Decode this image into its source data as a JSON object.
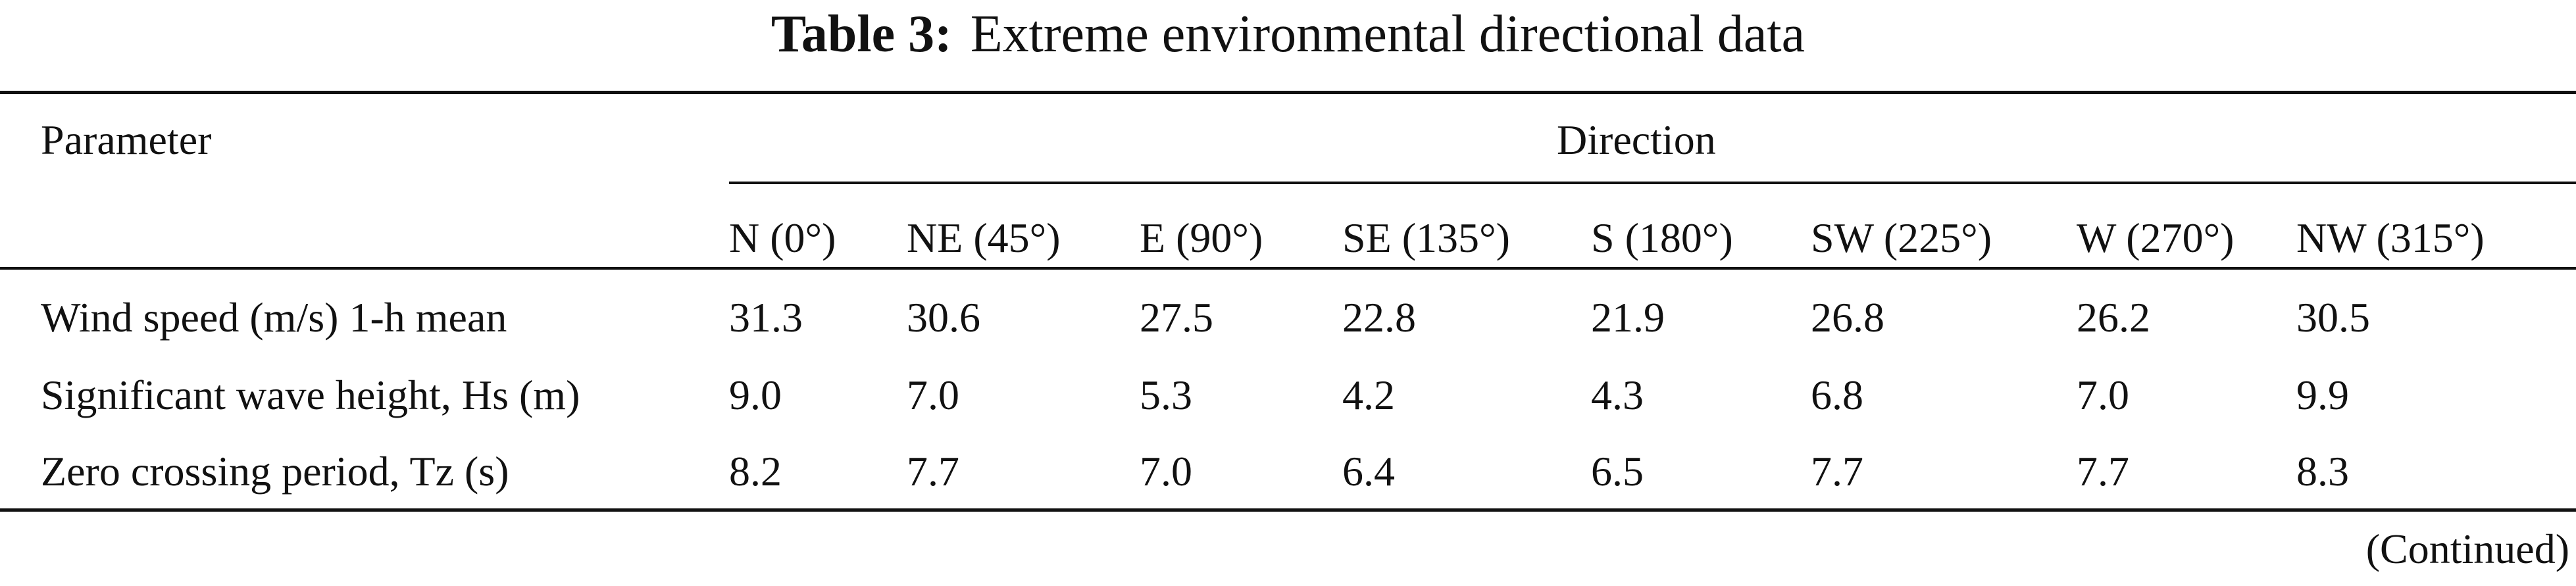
{
  "caption": {
    "label": "Table 3:",
    "text": "Extreme environmental directional data"
  },
  "table": {
    "parameter_header": "Parameter",
    "direction_header": "Direction",
    "directions": [
      "N (0°)",
      "NE (45°)",
      "E (90°)",
      "SE (135°)",
      "S (180°)",
      "SW (225°)",
      "W (270°)",
      "NW (315°)"
    ],
    "rows": [
      {
        "parameter": "Wind speed (m/s) 1-h mean",
        "values": [
          "31.3",
          "30.6",
          "27.5",
          "22.8",
          "21.9",
          "26.8",
          "26.2",
          "30.5"
        ]
      },
      {
        "parameter": "Significant wave height, Hs (m)",
        "values": [
          "9.0",
          "7.0",
          "5.3",
          "4.2",
          "4.3",
          "6.8",
          "7.0",
          "9.9"
        ]
      },
      {
        "parameter": "Zero crossing period, Tz (s)",
        "values": [
          "8.2",
          "7.7",
          "7.0",
          "6.4",
          "6.5",
          "7.7",
          "7.7",
          "8.3"
        ]
      }
    ]
  },
  "footer": {
    "continued": "(Continued)"
  }
}
